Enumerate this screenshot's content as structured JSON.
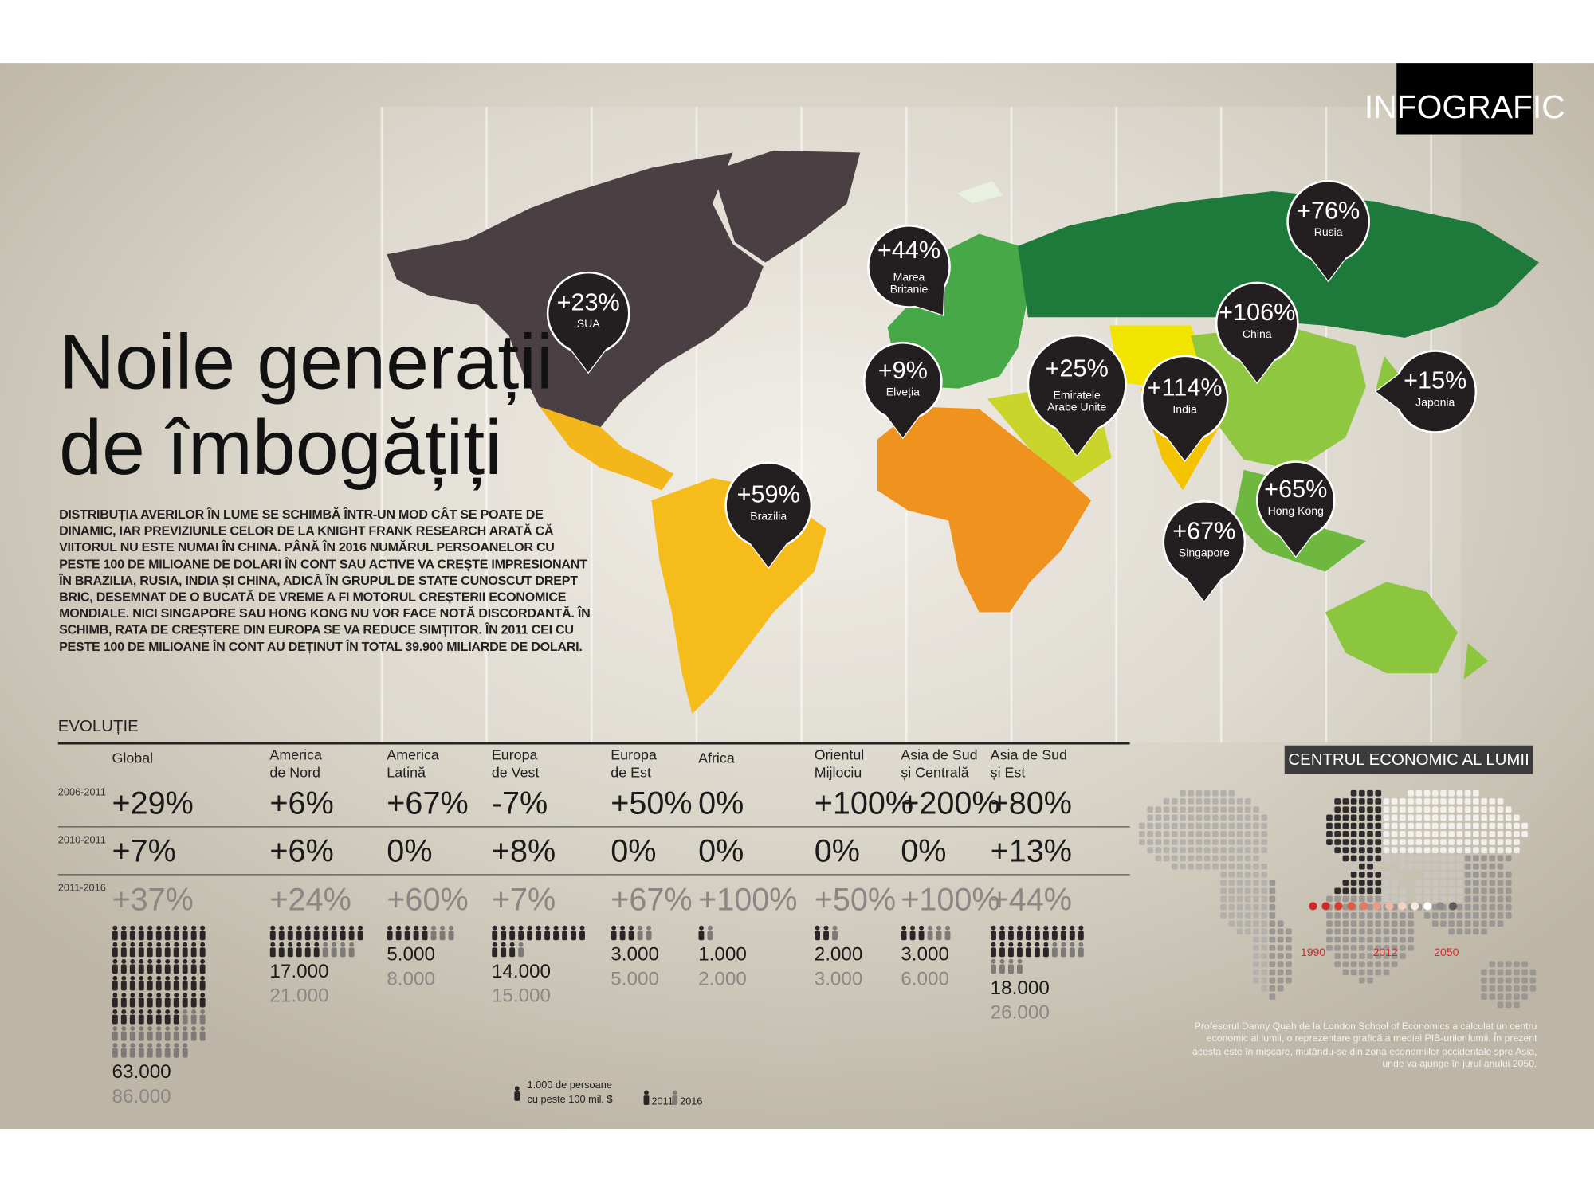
{
  "badge": "INFOGRAFIC",
  "title": [
    "Noile generații",
    "de îmbogățiți"
  ],
  "intro": "DISTRIBUȚIA AVERILOR ÎN LUME SE SCHIMBĂ ÎNTR-UN MOD CÂT SE POATE DE DINAMIC, IAR PREVIZIUNLE CELOR DE LA KNIGHT FRANK RESEARCH ARATĂ CĂ VIITORUL NU ESTE NUMAI ÎN CHINA. PÂNĂ ÎN 2016 NUMĂRUL PERSOANELOR CU PESTE 100 DE MILIOANE DE DOLARI ÎN CONT SAU ACTIVE VA CREȘTE IMPRESIONANT ÎN BRAZILIA, RUSIA, INDIA ȘI CHINA, ADICĂ ÎN GRUPUL DE STATE CUNOSCUT DREPT BRIC, DESEMNAT DE O BUCATĂ DE VREME A FI MOTORUL CREȘTERII ECONOMICE MONDIALE. NICI SINGAPORE SAU HONG KONG NU VOR FACE NOTĂ DISCORDANTĂ. ÎN SCHIMB, RATA DE CREȘTERE DIN EUROPA SE VA REDUCE SIMȚITOR. ÎN 2011 CEI CU PESTE 100 DE MILIOANE ÎN CONT AU DEȚINUT ÎN TOTAL 39.900 MILIARDE DE DOLARI.",
  "markers": [
    {
      "value": "+23%",
      "label": [
        "SUA"
      ]
    },
    {
      "value": "+44%",
      "label": [
        "Marea",
        "Britanie"
      ]
    },
    {
      "value": "+59%",
      "label": [
        "Brazilia"
      ]
    },
    {
      "value": "+9%",
      "label": [
        "Elveția"
      ]
    },
    {
      "value": "+25%",
      "label": [
        "Emiratele",
        "Arabe Unite"
      ]
    },
    {
      "value": "+76%",
      "label": [
        "Rusia"
      ]
    },
    {
      "value": "+106%",
      "label": [
        "China"
      ]
    },
    {
      "value": "+114%",
      "label": [
        "India"
      ]
    },
    {
      "value": "+15%",
      "label": [
        "Japonia"
      ]
    },
    {
      "value": "+65%",
      "label": [
        "Hong Kong"
      ]
    },
    {
      "value": "+67%",
      "label": [
        "Singapore"
      ]
    }
  ],
  "table": {
    "title": "EVOLUȚIE",
    "periods": [
      "2006-2011",
      "2010-2011",
      "2011-2016"
    ],
    "columns": [
      {
        "name": [
          "Global"
        ],
        "rows": [
          "+29%",
          "+7%",
          "+37%"
        ],
        "count_2011": {
          "value": 63000,
          "label": "63.000"
        },
        "count_2016": {
          "value": 86000,
          "label": "86.000"
        }
      },
      {
        "name": [
          "America",
          "de Nord"
        ],
        "rows": [
          "+6%",
          "+6%",
          "+24%"
        ],
        "count_2011": {
          "value": 17000,
          "label": "17.000"
        },
        "count_2016": {
          "value": 21000,
          "label": "21.000"
        }
      },
      {
        "name": [
          "America",
          "Latină"
        ],
        "rows": [
          "+67%",
          "0%",
          "+60%"
        ],
        "count_2011": {
          "value": 5000,
          "label": "5.000"
        },
        "count_2016": {
          "value": 8000,
          "label": "8.000"
        }
      },
      {
        "name": [
          "Europa",
          "de Vest"
        ],
        "rows": [
          "-7%",
          "+8%",
          "+7%"
        ],
        "count_2011": {
          "value": 14000,
          "label": "14.000"
        },
        "count_2016": {
          "value": 15000,
          "label": "15.000"
        }
      },
      {
        "name": [
          "Europa",
          "de Est"
        ],
        "rows": [
          "+50%",
          "0%",
          "+67%"
        ],
        "count_2011": {
          "value": 3000,
          "label": "3.000"
        },
        "count_2016": {
          "value": 5000,
          "label": "5.000"
        }
      },
      {
        "name": [
          "Africa"
        ],
        "rows": [
          "0%",
          "0%",
          "+100%"
        ],
        "count_2011": {
          "value": 1000,
          "label": "1.000"
        },
        "count_2016": {
          "value": 2000,
          "label": "2.000"
        }
      },
      {
        "name": [
          "Orientul",
          "Mijlociu"
        ],
        "rows": [
          "+100%",
          "0%",
          "+50%"
        ],
        "count_2011": {
          "value": 2000,
          "label": "2.000"
        },
        "count_2016": {
          "value": 3000,
          "label": "3.000"
        }
      },
      {
        "name": [
          "Asia de Sud",
          "și Centrală"
        ],
        "rows": [
          "+200%",
          "0%",
          "+100%"
        ],
        "count_2011": {
          "value": 3000,
          "label": "3.000"
        },
        "count_2016": {
          "value": 6000,
          "label": "6.000"
        }
      },
      {
        "name": [
          "Asia de Sud",
          "și Est"
        ],
        "rows": [
          "+80%",
          "+13%",
          "+44%"
        ],
        "count_2011": {
          "value": 18000,
          "label": "18.000"
        },
        "count_2016": {
          "value": 26000,
          "label": "26.000"
        }
      }
    ]
  },
  "legend": {
    "amount": {
      "value": 1000,
      "label": "1.000"
    },
    "text": [
      "de persoane",
      "cu peste 100 mil. $"
    ],
    "year_2011": "2011",
    "year_2016": "2016"
  },
  "inset": {
    "title": "CENTRUL ECONOMIC AL LUMII",
    "years": [
      "1990",
      "2012",
      "2050"
    ],
    "caption": "Profesorul Danny Quah de la London School of Economics a calculat un centru economic al lumii, o reprezentare grafică a mediei PIB-urilor lumii. În prezent acesta este în mișcare, mutându-se din zona economiilor occidentale spre Asia, unde va ajunge în jurul anului 2050."
  }
}
